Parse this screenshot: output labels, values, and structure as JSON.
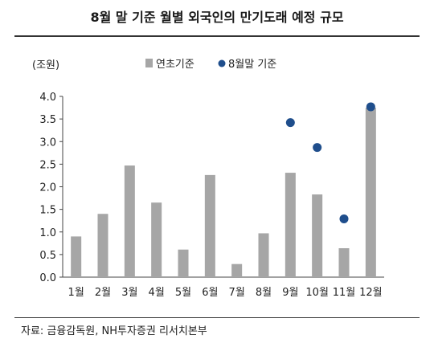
{
  "title": "8월 말 기준 월별 외국인의 만기도래 예정 규모",
  "source": "자료: 금융감독원, NH투자증권 리서치본부",
  "chart_data": {
    "type": "bar",
    "unit_label": "(조원)",
    "categories": [
      "1월",
      "2월",
      "3월",
      "4월",
      "5월",
      "6월",
      "7월",
      "8월",
      "9월",
      "10월",
      "11월",
      "12월"
    ],
    "series": [
      {
        "name": "연초기준",
        "mark": "bar",
        "color": "#a6a6a6",
        "values": [
          0.9,
          1.4,
          2.47,
          1.65,
          0.61,
          2.26,
          0.29,
          0.97,
          2.31,
          1.83,
          0.64,
          3.75
        ]
      },
      {
        "name": "8월말 기준",
        "mark": "dot",
        "color": "#1f4e8c",
        "values": [
          null,
          null,
          null,
          null,
          null,
          null,
          null,
          null,
          3.42,
          2.87,
          1.29,
          3.77
        ]
      }
    ],
    "yticks": [
      "4.0",
      "3.5",
      "3.0",
      "2.5",
      "2.0",
      "1.5",
      "1.0",
      "0.5",
      "0.0"
    ],
    "ylim": [
      0,
      4.0
    ],
    "grid": false,
    "legend_position": "top"
  }
}
